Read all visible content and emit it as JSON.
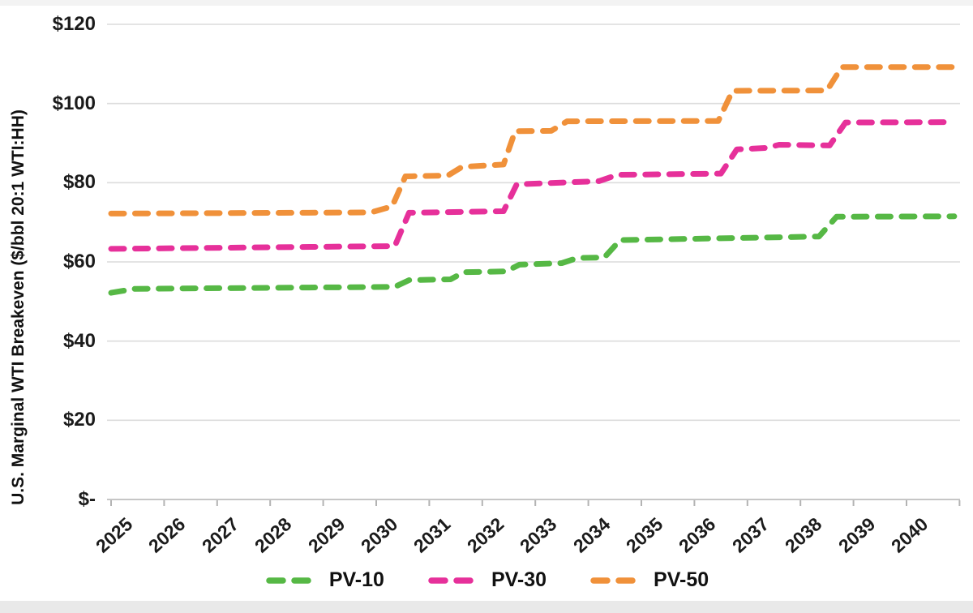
{
  "page": {
    "background": "#ffffff",
    "grid_color": "#dcdcdc",
    "axis_color": "#c6c6c6",
    "tick_color": "#b3b3b3",
    "text_color": "#1b1b1b"
  },
  "chart_data": {
    "type": "line",
    "subtype": "dashed-step-line",
    "title": "",
    "xlabel": "",
    "ylabel": "U.S. Marginal WTI Breakeven ($/bbl 20:1 WTI:HH)",
    "ylim": [
      0,
      120
    ],
    "grid": true,
    "legend_position": "bottom",
    "y_ticks": [
      {
        "value": 120,
        "label": "$120"
      },
      {
        "value": 100,
        "label": "$100"
      },
      {
        "value": 80,
        "label": "$80"
      },
      {
        "value": 60,
        "label": "$60"
      },
      {
        "value": 40,
        "label": "$40"
      },
      {
        "value": 20,
        "label": "$20"
      },
      {
        "value": 0,
        "label": "$-"
      }
    ],
    "x_categories": [
      "2025",
      "2026",
      "2027",
      "2028",
      "2029",
      "2030",
      "2031",
      "2032",
      "2033",
      "2034",
      "2035",
      "2036",
      "2037",
      "2038",
      "2039",
      "2040"
    ],
    "series": [
      {
        "name": "PV-10",
        "color": "#56b845",
        "points": [
          [
            2025.0,
            52.2
          ],
          [
            2025.45,
            53.2
          ],
          [
            2030.35,
            53.7
          ],
          [
            2030.62,
            55.4
          ],
          [
            2031.4,
            55.6
          ],
          [
            2031.65,
            57.4
          ],
          [
            2032.45,
            57.6
          ],
          [
            2032.7,
            59.3
          ],
          [
            2033.5,
            59.7
          ],
          [
            2033.8,
            61.0
          ],
          [
            2034.3,
            61.1
          ],
          [
            2034.6,
            65.5
          ],
          [
            2038.35,
            66.4
          ],
          [
            2038.68,
            71.4
          ],
          [
            2040.9,
            71.5
          ]
        ]
      },
      {
        "name": "PV-30",
        "color": "#e6309a",
        "points": [
          [
            2025.0,
            63.3
          ],
          [
            2030.35,
            64.0
          ],
          [
            2030.62,
            72.4
          ],
          [
            2032.4,
            72.8
          ],
          [
            2032.65,
            79.6
          ],
          [
            2034.2,
            80.4
          ],
          [
            2034.55,
            82.0
          ],
          [
            2036.5,
            82.3
          ],
          [
            2036.8,
            88.4
          ],
          [
            2037.35,
            88.8
          ],
          [
            2037.6,
            89.6
          ],
          [
            2038.55,
            89.4
          ],
          [
            2038.85,
            95.2
          ],
          [
            2040.9,
            95.3
          ]
        ]
      },
      {
        "name": "PV-50",
        "color": "#f0913a",
        "points": [
          [
            2025.0,
            72.2
          ],
          [
            2029.9,
            72.5
          ],
          [
            2030.3,
            74.0
          ],
          [
            2030.55,
            81.6
          ],
          [
            2031.35,
            81.8
          ],
          [
            2031.62,
            84.0
          ],
          [
            2032.4,
            84.6
          ],
          [
            2032.62,
            93.0
          ],
          [
            2033.3,
            93.1
          ],
          [
            2033.6,
            95.5
          ],
          [
            2036.45,
            95.6
          ],
          [
            2036.72,
            103.2
          ],
          [
            2038.5,
            103.3
          ],
          [
            2038.78,
            109.2
          ],
          [
            2040.9,
            109.2
          ]
        ]
      }
    ]
  }
}
